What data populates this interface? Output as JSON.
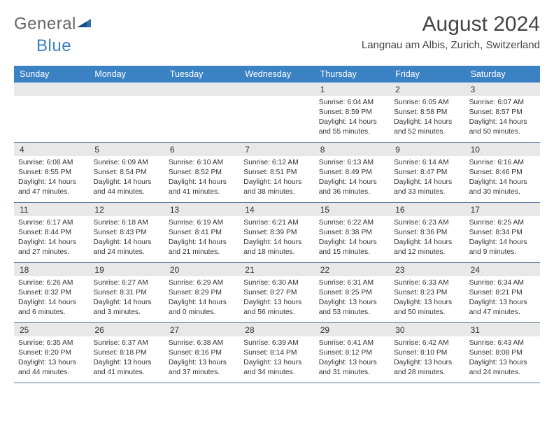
{
  "logo": {
    "text1": "General",
    "text2": "Blue"
  },
  "title": "August 2024",
  "location": "Langnau am Albis, Zurich, Switzerland",
  "header_bg": "#3b82c4",
  "daynum_bg": "#e8e8e8",
  "border_color": "#5a7a9a",
  "weekdays": [
    "Sunday",
    "Monday",
    "Tuesday",
    "Wednesday",
    "Thursday",
    "Friday",
    "Saturday"
  ],
  "weeks": [
    {
      "nums": [
        "",
        "",
        "",
        "",
        "1",
        "2",
        "3"
      ],
      "cells": [
        null,
        null,
        null,
        null,
        {
          "sunrise": "Sunrise: 6:04 AM",
          "sunset": "Sunset: 8:59 PM",
          "dl1": "Daylight: 14 hours",
          "dl2": "and 55 minutes."
        },
        {
          "sunrise": "Sunrise: 6:05 AM",
          "sunset": "Sunset: 8:58 PM",
          "dl1": "Daylight: 14 hours",
          "dl2": "and 52 minutes."
        },
        {
          "sunrise": "Sunrise: 6:07 AM",
          "sunset": "Sunset: 8:57 PM",
          "dl1": "Daylight: 14 hours",
          "dl2": "and 50 minutes."
        }
      ]
    },
    {
      "nums": [
        "4",
        "5",
        "6",
        "7",
        "8",
        "9",
        "10"
      ],
      "cells": [
        {
          "sunrise": "Sunrise: 6:08 AM",
          "sunset": "Sunset: 8:55 PM",
          "dl1": "Daylight: 14 hours",
          "dl2": "and 47 minutes."
        },
        {
          "sunrise": "Sunrise: 6:09 AM",
          "sunset": "Sunset: 8:54 PM",
          "dl1": "Daylight: 14 hours",
          "dl2": "and 44 minutes."
        },
        {
          "sunrise": "Sunrise: 6:10 AM",
          "sunset": "Sunset: 8:52 PM",
          "dl1": "Daylight: 14 hours",
          "dl2": "and 41 minutes."
        },
        {
          "sunrise": "Sunrise: 6:12 AM",
          "sunset": "Sunset: 8:51 PM",
          "dl1": "Daylight: 14 hours",
          "dl2": "and 38 minutes."
        },
        {
          "sunrise": "Sunrise: 6:13 AM",
          "sunset": "Sunset: 8:49 PM",
          "dl1": "Daylight: 14 hours",
          "dl2": "and 36 minutes."
        },
        {
          "sunrise": "Sunrise: 6:14 AM",
          "sunset": "Sunset: 8:47 PM",
          "dl1": "Daylight: 14 hours",
          "dl2": "and 33 minutes."
        },
        {
          "sunrise": "Sunrise: 6:16 AM",
          "sunset": "Sunset: 8:46 PM",
          "dl1": "Daylight: 14 hours",
          "dl2": "and 30 minutes."
        }
      ]
    },
    {
      "nums": [
        "11",
        "12",
        "13",
        "14",
        "15",
        "16",
        "17"
      ],
      "cells": [
        {
          "sunrise": "Sunrise: 6:17 AM",
          "sunset": "Sunset: 8:44 PM",
          "dl1": "Daylight: 14 hours",
          "dl2": "and 27 minutes."
        },
        {
          "sunrise": "Sunrise: 6:18 AM",
          "sunset": "Sunset: 8:43 PM",
          "dl1": "Daylight: 14 hours",
          "dl2": "and 24 minutes."
        },
        {
          "sunrise": "Sunrise: 6:19 AM",
          "sunset": "Sunset: 8:41 PM",
          "dl1": "Daylight: 14 hours",
          "dl2": "and 21 minutes."
        },
        {
          "sunrise": "Sunrise: 6:21 AM",
          "sunset": "Sunset: 8:39 PM",
          "dl1": "Daylight: 14 hours",
          "dl2": "and 18 minutes."
        },
        {
          "sunrise": "Sunrise: 6:22 AM",
          "sunset": "Sunset: 8:38 PM",
          "dl1": "Daylight: 14 hours",
          "dl2": "and 15 minutes."
        },
        {
          "sunrise": "Sunrise: 6:23 AM",
          "sunset": "Sunset: 8:36 PM",
          "dl1": "Daylight: 14 hours",
          "dl2": "and 12 minutes."
        },
        {
          "sunrise": "Sunrise: 6:25 AM",
          "sunset": "Sunset: 8:34 PM",
          "dl1": "Daylight: 14 hours",
          "dl2": "and 9 minutes."
        }
      ]
    },
    {
      "nums": [
        "18",
        "19",
        "20",
        "21",
        "22",
        "23",
        "24"
      ],
      "cells": [
        {
          "sunrise": "Sunrise: 6:26 AM",
          "sunset": "Sunset: 8:32 PM",
          "dl1": "Daylight: 14 hours",
          "dl2": "and 6 minutes."
        },
        {
          "sunrise": "Sunrise: 6:27 AM",
          "sunset": "Sunset: 8:31 PM",
          "dl1": "Daylight: 14 hours",
          "dl2": "and 3 minutes."
        },
        {
          "sunrise": "Sunrise: 6:29 AM",
          "sunset": "Sunset: 8:29 PM",
          "dl1": "Daylight: 14 hours",
          "dl2": "and 0 minutes."
        },
        {
          "sunrise": "Sunrise: 6:30 AM",
          "sunset": "Sunset: 8:27 PM",
          "dl1": "Daylight: 13 hours",
          "dl2": "and 56 minutes."
        },
        {
          "sunrise": "Sunrise: 6:31 AM",
          "sunset": "Sunset: 8:25 PM",
          "dl1": "Daylight: 13 hours",
          "dl2": "and 53 minutes."
        },
        {
          "sunrise": "Sunrise: 6:33 AM",
          "sunset": "Sunset: 8:23 PM",
          "dl1": "Daylight: 13 hours",
          "dl2": "and 50 minutes."
        },
        {
          "sunrise": "Sunrise: 6:34 AM",
          "sunset": "Sunset: 8:21 PM",
          "dl1": "Daylight: 13 hours",
          "dl2": "and 47 minutes."
        }
      ]
    },
    {
      "nums": [
        "25",
        "26",
        "27",
        "28",
        "29",
        "30",
        "31"
      ],
      "cells": [
        {
          "sunrise": "Sunrise: 6:35 AM",
          "sunset": "Sunset: 8:20 PM",
          "dl1": "Daylight: 13 hours",
          "dl2": "and 44 minutes."
        },
        {
          "sunrise": "Sunrise: 6:37 AM",
          "sunset": "Sunset: 8:18 PM",
          "dl1": "Daylight: 13 hours",
          "dl2": "and 41 minutes."
        },
        {
          "sunrise": "Sunrise: 6:38 AM",
          "sunset": "Sunset: 8:16 PM",
          "dl1": "Daylight: 13 hours",
          "dl2": "and 37 minutes."
        },
        {
          "sunrise": "Sunrise: 6:39 AM",
          "sunset": "Sunset: 8:14 PM",
          "dl1": "Daylight: 13 hours",
          "dl2": "and 34 minutes."
        },
        {
          "sunrise": "Sunrise: 6:41 AM",
          "sunset": "Sunset: 8:12 PM",
          "dl1": "Daylight: 13 hours",
          "dl2": "and 31 minutes."
        },
        {
          "sunrise": "Sunrise: 6:42 AM",
          "sunset": "Sunset: 8:10 PM",
          "dl1": "Daylight: 13 hours",
          "dl2": "and 28 minutes."
        },
        {
          "sunrise": "Sunrise: 6:43 AM",
          "sunset": "Sunset: 8:08 PM",
          "dl1": "Daylight: 13 hours",
          "dl2": "and 24 minutes."
        }
      ]
    }
  ]
}
